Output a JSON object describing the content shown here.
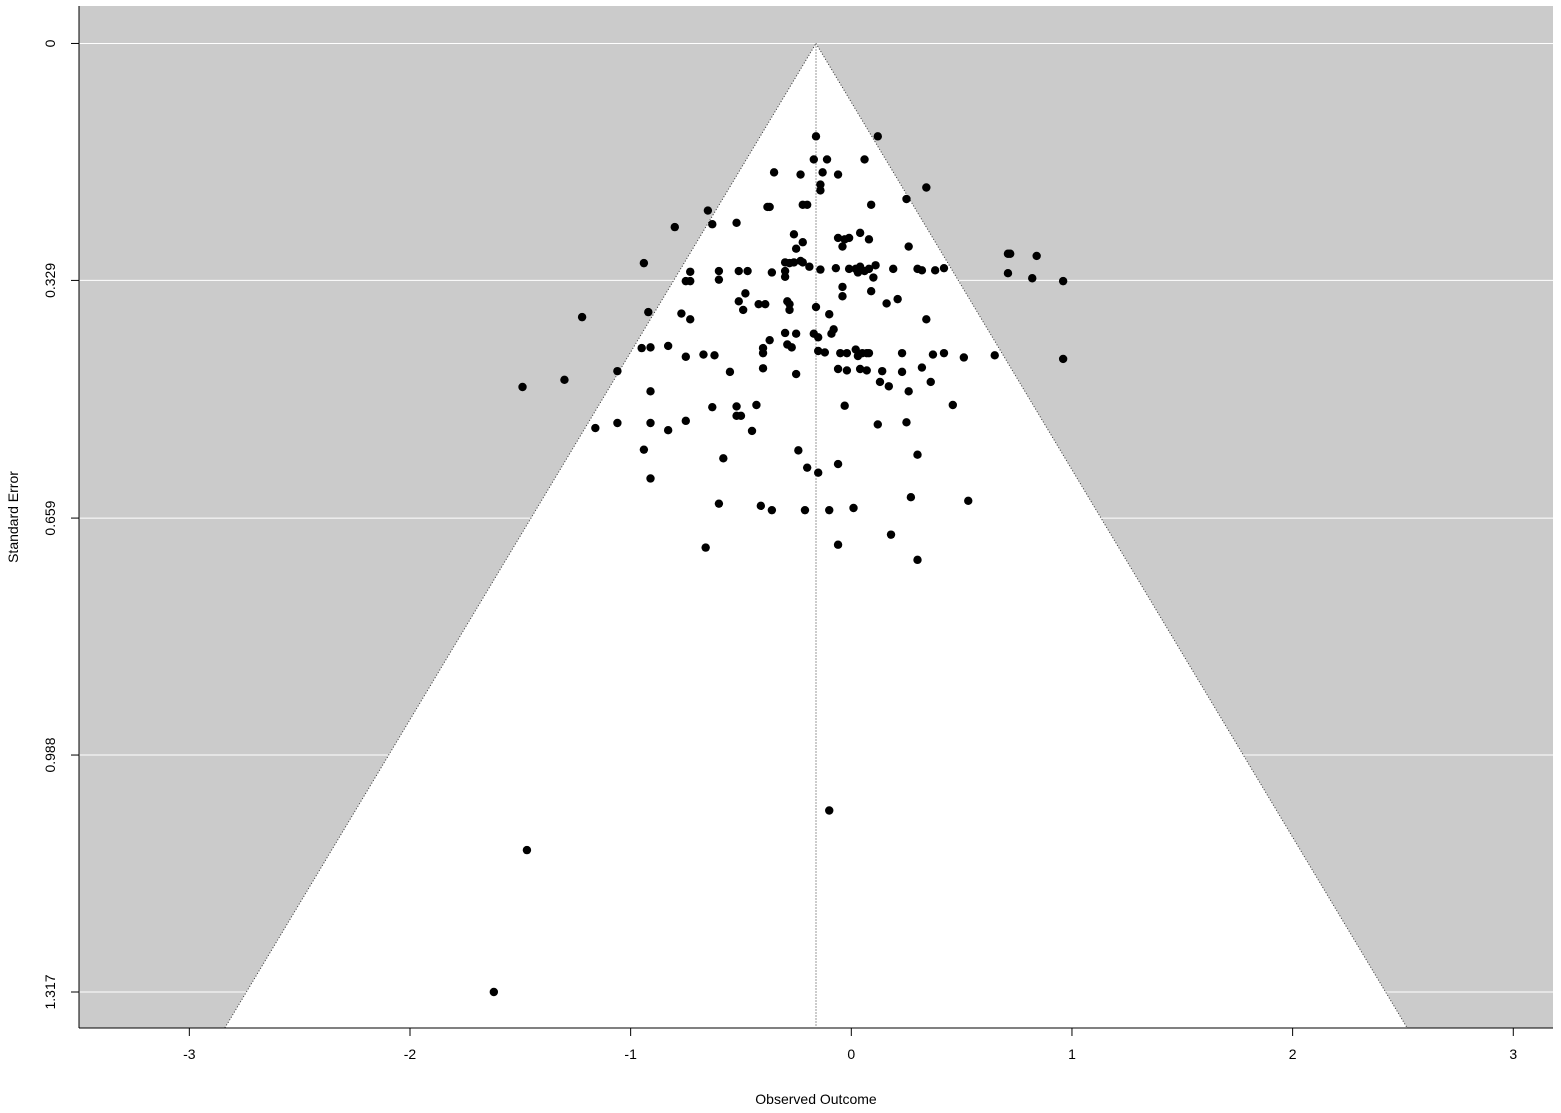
{
  "chart_data": {
    "type": "scatter",
    "title": "",
    "xlabel": "Observed Outcome",
    "ylabel": "Standard Error",
    "xlim": [
      -3.5,
      3.18
    ],
    "ylim": [
      1.367,
      -0.052
    ],
    "x_ticks": [
      -3,
      -2,
      -1,
      0,
      1,
      2,
      3
    ],
    "x_tick_labels": [
      "-3",
      "-2",
      "-1",
      "0",
      "1",
      "2",
      "3"
    ],
    "y_ticks": [
      0,
      0.329,
      0.659,
      0.988,
      1.317
    ],
    "y_tick_labels": [
      "0",
      "0.329",
      "0.659",
      "0.988",
      "1.317"
    ],
    "funnel_center": -0.16,
    "funnel_z": 1.96,
    "grid": true,
    "colors": {
      "background": "#cbcbcb",
      "funnel": "#ffffff",
      "points": "#000000",
      "gridlines": "#ffffff",
      "axis": "#000000"
    },
    "points": [
      [
        -0.16,
        0.129
      ],
      [
        0.12,
        0.129
      ],
      [
        -0.17,
        0.161
      ],
      [
        -0.11,
        0.161
      ],
      [
        0.06,
        0.161
      ],
      [
        -0.35,
        0.179
      ],
      [
        -0.23,
        0.182
      ],
      [
        -0.13,
        0.179
      ],
      [
        -0.06,
        0.182
      ],
      [
        -0.14,
        0.196
      ],
      [
        -0.14,
        0.204
      ],
      [
        0.34,
        0.2
      ],
      [
        -0.38,
        0.227
      ],
      [
        -0.37,
        0.227
      ],
      [
        -0.22,
        0.224
      ],
      [
        -0.2,
        0.224
      ],
      [
        0.09,
        0.224
      ],
      [
        0.25,
        0.216
      ],
      [
        -0.65,
        0.232
      ],
      [
        -0.8,
        0.255
      ],
      [
        -0.63,
        0.251
      ],
      [
        -0.52,
        0.249
      ],
      [
        -0.06,
        0.27
      ],
      [
        -0.03,
        0.272
      ],
      [
        -0.01,
        0.27
      ],
      [
        0.04,
        0.263
      ],
      [
        0.08,
        0.272
      ],
      [
        -0.26,
        0.265
      ],
      [
        -0.25,
        0.285
      ],
      [
        -0.22,
        0.276
      ],
      [
        0.26,
        0.282
      ],
      [
        -0.04,
        0.282
      ],
      [
        -0.94,
        0.305
      ],
      [
        -0.3,
        0.304
      ],
      [
        -0.28,
        0.305
      ],
      [
        -0.26,
        0.304
      ],
      [
        -0.23,
        0.302
      ],
      [
        -0.22,
        0.304
      ],
      [
        -0.6,
        0.316
      ],
      [
        -0.73,
        0.317
      ],
      [
        -0.51,
        0.316
      ],
      [
        -0.47,
        0.316
      ],
      [
        -0.36,
        0.318
      ],
      [
        -0.3,
        0.316
      ],
      [
        -0.19,
        0.31
      ],
      [
        -0.14,
        0.314
      ],
      [
        -0.07,
        0.312
      ],
      [
        -0.01,
        0.313
      ],
      [
        0.02,
        0.313
      ],
      [
        0.04,
        0.31
      ],
      [
        0.06,
        0.316
      ],
      [
        0.08,
        0.313
      ],
      [
        0.11,
        0.308
      ],
      [
        0.19,
        0.313
      ],
      [
        0.3,
        0.313
      ],
      [
        0.32,
        0.315
      ],
      [
        0.38,
        0.315
      ],
      [
        0.42,
        0.312
      ],
      [
        -0.6,
        0.328
      ],
      [
        -0.73,
        0.33
      ],
      [
        -0.75,
        0.33
      ],
      [
        -0.3,
        0.324
      ],
      [
        0.03,
        0.318
      ],
      [
        0.1,
        0.325
      ],
      [
        0.71,
        0.292
      ],
      [
        0.72,
        0.292
      ],
      [
        0.84,
        0.295
      ],
      [
        0.71,
        0.319
      ],
      [
        0.82,
        0.326
      ],
      [
        0.96,
        0.33
      ],
      [
        -0.48,
        0.347
      ],
      [
        -0.04,
        0.338
      ],
      [
        0.09,
        0.344
      ],
      [
        -0.51,
        0.358
      ],
      [
        -0.42,
        0.362
      ],
      [
        -0.39,
        0.362
      ],
      [
        -0.29,
        0.358
      ],
      [
        -0.28,
        0.362
      ],
      [
        -0.16,
        0.366
      ],
      [
        -0.04,
        0.351
      ],
      [
        0.16,
        0.361
      ],
      [
        0.21,
        0.355
      ],
      [
        -0.49,
        0.37
      ],
      [
        -0.28,
        0.37
      ],
      [
        -0.1,
        0.376
      ],
      [
        -0.92,
        0.373
      ],
      [
        -1.22,
        0.38
      ],
      [
        -0.77,
        0.375
      ],
      [
        -0.73,
        0.383
      ],
      [
        0.34,
        0.383
      ],
      [
        -0.17,
        0.403
      ],
      [
        -0.15,
        0.408
      ],
      [
        -0.25,
        0.403
      ],
      [
        -0.3,
        0.402
      ],
      [
        -0.08,
        0.397
      ],
      [
        -0.09,
        0.403
      ],
      [
        -0.37,
        0.412
      ],
      [
        -0.27,
        0.422
      ],
      [
        -0.29,
        0.418
      ],
      [
        -0.95,
        0.423
      ],
      [
        -0.91,
        0.422
      ],
      [
        -0.83,
        0.42
      ],
      [
        -0.4,
        0.423
      ],
      [
        -0.4,
        0.43
      ],
      [
        -0.15,
        0.427
      ],
      [
        -0.12,
        0.429
      ],
      [
        -0.05,
        0.43
      ],
      [
        -0.02,
        0.43
      ],
      [
        0.02,
        0.425
      ],
      [
        0.03,
        0.434
      ],
      [
        0.05,
        0.43
      ],
      [
        0.07,
        0.43
      ],
      [
        0.08,
        0.43
      ],
      [
        0.23,
        0.43
      ],
      [
        0.37,
        0.432
      ],
      [
        0.42,
        0.43
      ],
      [
        0.51,
        0.436
      ],
      [
        0.65,
        0.433
      ],
      [
        0.96,
        0.438
      ],
      [
        -0.75,
        0.435
      ],
      [
        -0.67,
        0.432
      ],
      [
        -0.62,
        0.433
      ],
      [
        -1.06,
        0.455
      ],
      [
        -0.55,
        0.456
      ],
      [
        -0.4,
        0.451
      ],
      [
        -0.25,
        0.459
      ],
      [
        -0.06,
        0.452
      ],
      [
        -0.02,
        0.454
      ],
      [
        0.04,
        0.452
      ],
      [
        0.07,
        0.454
      ],
      [
        0.14,
        0.455
      ],
      [
        0.23,
        0.456
      ],
      [
        0.32,
        0.45
      ],
      [
        0.36,
        0.47
      ],
      [
        0.13,
        0.47
      ],
      [
        0.17,
        0.476
      ],
      [
        -1.49,
        0.477
      ],
      [
        -1.3,
        0.467
      ],
      [
        -0.91,
        0.483
      ],
      [
        0.26,
        0.483
      ],
      [
        -0.63,
        0.505
      ],
      [
        -0.52,
        0.504
      ],
      [
        -0.43,
        0.502
      ],
      [
        -0.03,
        0.503
      ],
      [
        0.46,
        0.502
      ],
      [
        -0.52,
        0.517
      ],
      [
        -0.5,
        0.517
      ],
      [
        -1.16,
        0.534
      ],
      [
        -1.06,
        0.527
      ],
      [
        -0.91,
        0.527
      ],
      [
        -0.83,
        0.537
      ],
      [
        -0.75,
        0.524
      ],
      [
        -0.45,
        0.538
      ],
      [
        0.12,
        0.529
      ],
      [
        0.25,
        0.526
      ],
      [
        -0.94,
        0.564
      ],
      [
        -0.24,
        0.565
      ],
      [
        -0.58,
        0.576
      ],
      [
        0.3,
        0.571
      ],
      [
        -0.2,
        0.589
      ],
      [
        -0.06,
        0.584
      ],
      [
        -0.15,
        0.596
      ],
      [
        -0.91,
        0.604
      ],
      [
        0.27,
        0.63
      ],
      [
        0.53,
        0.635
      ],
      [
        -0.6,
        0.639
      ],
      [
        -0.41,
        0.642
      ],
      [
        -0.36,
        0.648
      ],
      [
        -0.21,
        0.648
      ],
      [
        -0.1,
        0.648
      ],
      [
        0.01,
        0.645
      ],
      [
        -0.66,
        0.7
      ],
      [
        -0.06,
        0.696
      ],
      [
        0.18,
        0.682
      ],
      [
        0.3,
        0.717
      ],
      [
        -0.1,
        1.065
      ],
      [
        -1.47,
        1.12
      ],
      [
        -1.62,
        1.317
      ]
    ]
  }
}
